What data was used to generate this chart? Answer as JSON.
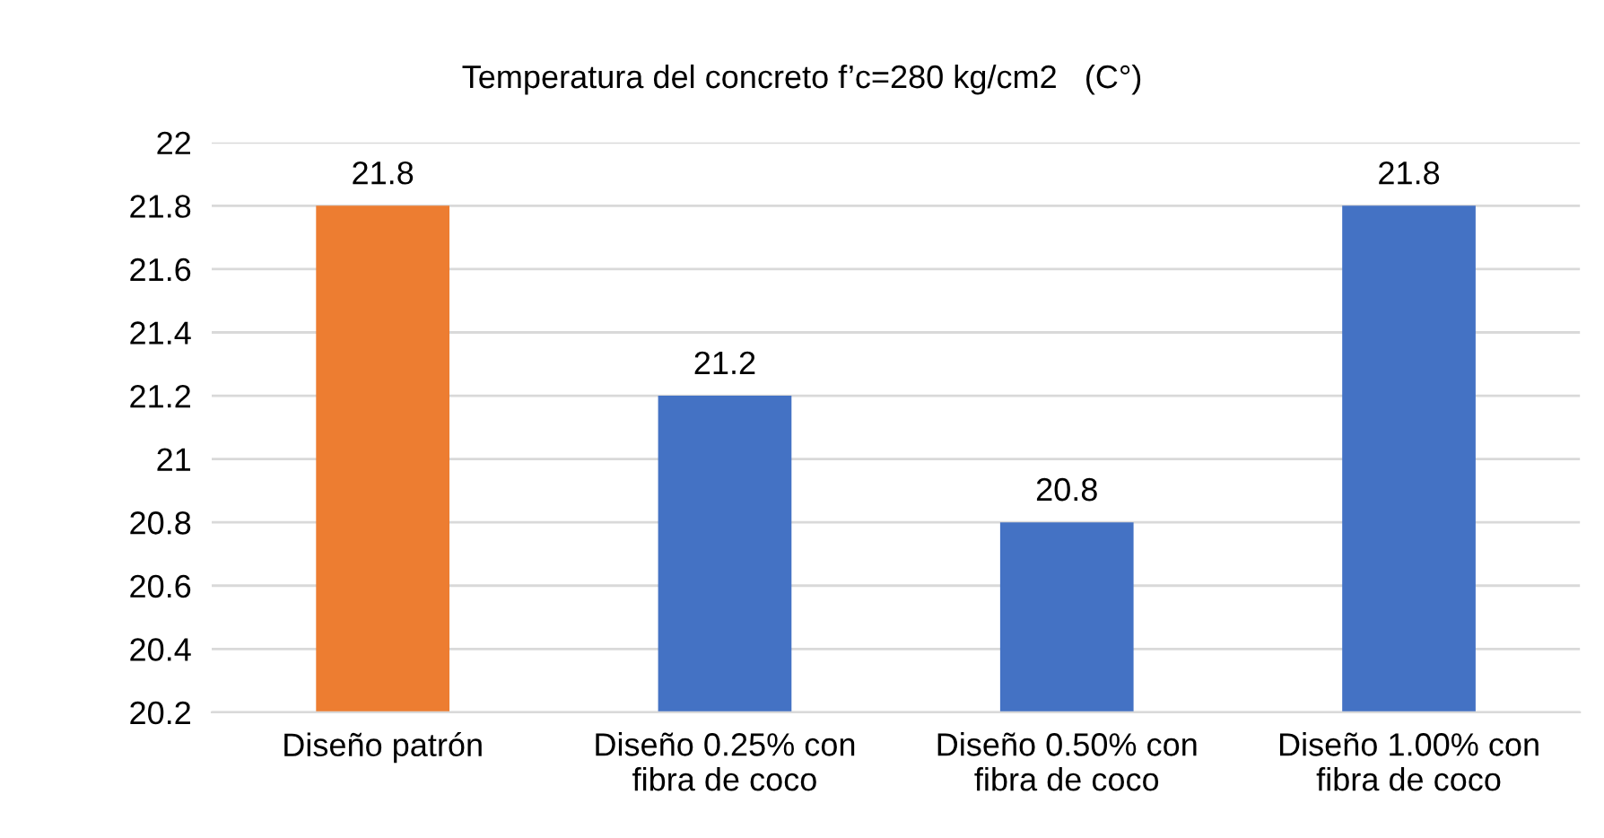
{
  "chart_data": {
    "type": "bar",
    "title": "Temperatura del concreto f’c=280 kg/cm2   (C°)",
    "categories": [
      "Diseño patrón",
      "Diseño 0.25% con\nfibra de coco",
      "Diseño 0.50% con\nfibra de coco",
      "Diseño 1.00% con\nfibra de coco"
    ],
    "values": [
      21.8,
      21.2,
      20.8,
      21.8
    ],
    "colors": [
      "#ed7d31",
      "#4472c4",
      "#4472c4",
      "#4472c4"
    ],
    "ylim": [
      20.2,
      22
    ],
    "yticks": [
      20.2,
      20.4,
      20.6,
      20.8,
      21,
      21.2,
      21.4,
      21.6,
      21.8,
      22
    ],
    "grid": "y",
    "data_labels": true,
    "legend": false
  }
}
